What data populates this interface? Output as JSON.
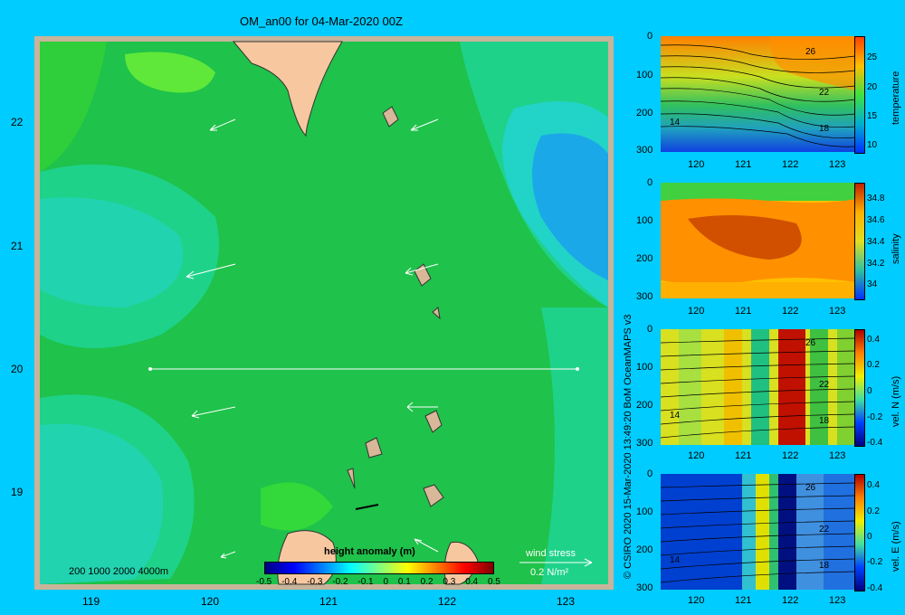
{
  "header": {
    "title": "OM_an00 for 04-Mar-2020 00Z"
  },
  "colors": {
    "background": "#00ccff",
    "land": "#f7c8a0",
    "frame": "#c8b49a"
  },
  "map": {
    "x_ticks": [
      "119",
      "120",
      "121",
      "122",
      "123"
    ],
    "y_ticks": [
      "22",
      "21",
      "20",
      "19"
    ],
    "bathymetry_legend": "200  1000  2000  4000m",
    "height_anomaly": {
      "label": "height anomaly  (m)",
      "ticks": [
        "-0.5",
        "-0.4",
        "-0.3",
        "-0.2",
        "-0.1",
        "0",
        "0.1",
        "0.2",
        "0.3",
        "0.4",
        "0.5"
      ]
    },
    "wind_stress": {
      "label": "wind stress",
      "scale": "0.2 N/m²"
    }
  },
  "panels": [
    {
      "name": "temperature",
      "depth_ticks": [
        "0",
        "100",
        "200",
        "300"
      ],
      "x_ticks": [
        "120",
        "121",
        "122",
        "123"
      ],
      "cbar_label": "temperature",
      "cbar_ticks": [
        "25",
        "20",
        "15",
        "10"
      ],
      "contour_labels": [
        "26",
        "22",
        "18",
        "14"
      ]
    },
    {
      "name": "salinity",
      "depth_ticks": [
        "0",
        "100",
        "200",
        "300"
      ],
      "x_ticks": [
        "120",
        "121",
        "122",
        "123"
      ],
      "cbar_label": "salinity",
      "cbar_ticks": [
        "34.8",
        "34.6",
        "34.4",
        "34.2",
        "34"
      ],
      "contour_labels": []
    },
    {
      "name": "vel-n",
      "depth_ticks": [
        "0",
        "100",
        "200",
        "300"
      ],
      "x_ticks": [
        "120",
        "121",
        "122",
        "123"
      ],
      "cbar_label": "vel. N  (m/s)",
      "cbar_ticks": [
        "0.4",
        "0.2",
        "0",
        "-0.2",
        "-0.4"
      ],
      "contour_labels": [
        "26",
        "22",
        "18",
        "14"
      ]
    },
    {
      "name": "vel-e",
      "depth_ticks": [
        "0",
        "100",
        "200",
        "300"
      ],
      "x_ticks": [
        "120",
        "121",
        "122",
        "123"
      ],
      "cbar_label": "vel. E  (m/s)",
      "cbar_ticks": [
        "0.4",
        "0.2",
        "0",
        "-0.2",
        "-0.4"
      ],
      "contour_labels": [
        "26",
        "22",
        "18",
        "14"
      ]
    }
  ],
  "credit": "© CSIRO 2020  15-Mar-2020 13:49:20 BoM OceanMAPS v3"
}
